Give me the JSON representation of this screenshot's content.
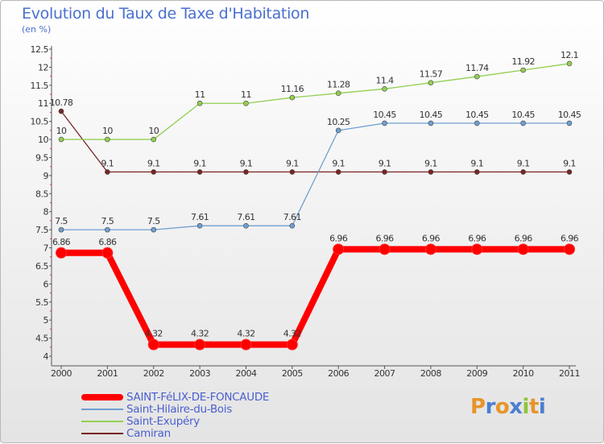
{
  "page": {
    "title": "Evolution du Taux de Taxe d'Habitation",
    "unit": "(en %)"
  },
  "logo": {
    "text": "Proxiti",
    "letters": [
      {
        "ch": "P",
        "color": "#e8942a"
      },
      {
        "ch": "r",
        "color": "#4a7fd0"
      },
      {
        "ch": "o",
        "color": "#e8942a"
      },
      {
        "ch": "x",
        "color": "#4a7fd0"
      },
      {
        "ch": "i",
        "color": "#8fc53a"
      },
      {
        "ch": "t",
        "color": "#e8942a"
      },
      {
        "ch": "i",
        "color": "#4a7fd0"
      }
    ]
  },
  "chart_data": {
    "type": "line",
    "title": "Evolution du Taux de Taxe d'Habitation",
    "ylabel": "(en %)",
    "xlabel": "",
    "ylim": [
      4,
      12.5
    ],
    "y_ticks": [
      "4",
      "4.5",
      "5",
      "5.5",
      "6",
      "6.5",
      "7",
      "7.5",
      "8",
      "8.5",
      "9",
      "9.5",
      "10",
      "10.5",
      "11",
      "11.5",
      "12",
      "12.5"
    ],
    "x": [
      "2000",
      "2001",
      "2002",
      "2003",
      "2004",
      "2005",
      "2006",
      "2007",
      "2008",
      "2009",
      "2010",
      "2011"
    ],
    "grid": false,
    "legend_position": "bottom-left",
    "series": [
      {
        "name": "SAINT-FéLIX-DE-FONCAUDE",
        "color": "#ff0000",
        "values": [
          6.86,
          6.86,
          4.32,
          4.32,
          4.32,
          4.32,
          6.96,
          6.96,
          6.96,
          6.96,
          6.96,
          6.96
        ],
        "labels": [
          "6.86",
          "6.86",
          "4.32",
          "4.32",
          "4.32",
          "4.32",
          "6.96",
          "6.96",
          "6.96",
          "6.96",
          "6.96",
          "6.96"
        ],
        "emphasis": true
      },
      {
        "name": "Saint-Hilaire-du-Bois",
        "color": "#6f9fd0",
        "values": [
          7.5,
          7.5,
          7.5,
          7.61,
          7.61,
          7.61,
          10.25,
          10.45,
          10.45,
          10.45,
          10.45,
          10.45
        ],
        "labels": [
          "7.5",
          "7.5",
          "7.5",
          "7.61",
          "7.61",
          "7.61",
          "10.25",
          "10.45",
          "10.45",
          "10.45",
          "10.45",
          "10.45"
        ]
      },
      {
        "name": "Saint-Exupéry",
        "color": "#93cf52",
        "values": [
          10,
          10,
          10,
          11,
          11,
          11.16,
          11.28,
          11.4,
          11.57,
          11.74,
          11.92,
          12.1
        ],
        "labels": [
          "10",
          "10",
          "10",
          "11",
          "11",
          "11.16",
          "11.28",
          "11.4",
          "11.57",
          "11.74",
          "11.92",
          "12.1"
        ]
      },
      {
        "name": "Camiran",
        "color": "#7a2424",
        "values": [
          10.78,
          9.1,
          9.1,
          9.1,
          9.1,
          9.1,
          9.1,
          9.1,
          9.1,
          9.1,
          9.1,
          9.1
        ],
        "labels": [
          "10.78",
          "9.1",
          "9.1",
          "9.1",
          "9.1",
          "9.1",
          "9.1",
          "9.1",
          "9.1",
          "9.1",
          "9.1",
          "9.1"
        ]
      }
    ]
  }
}
